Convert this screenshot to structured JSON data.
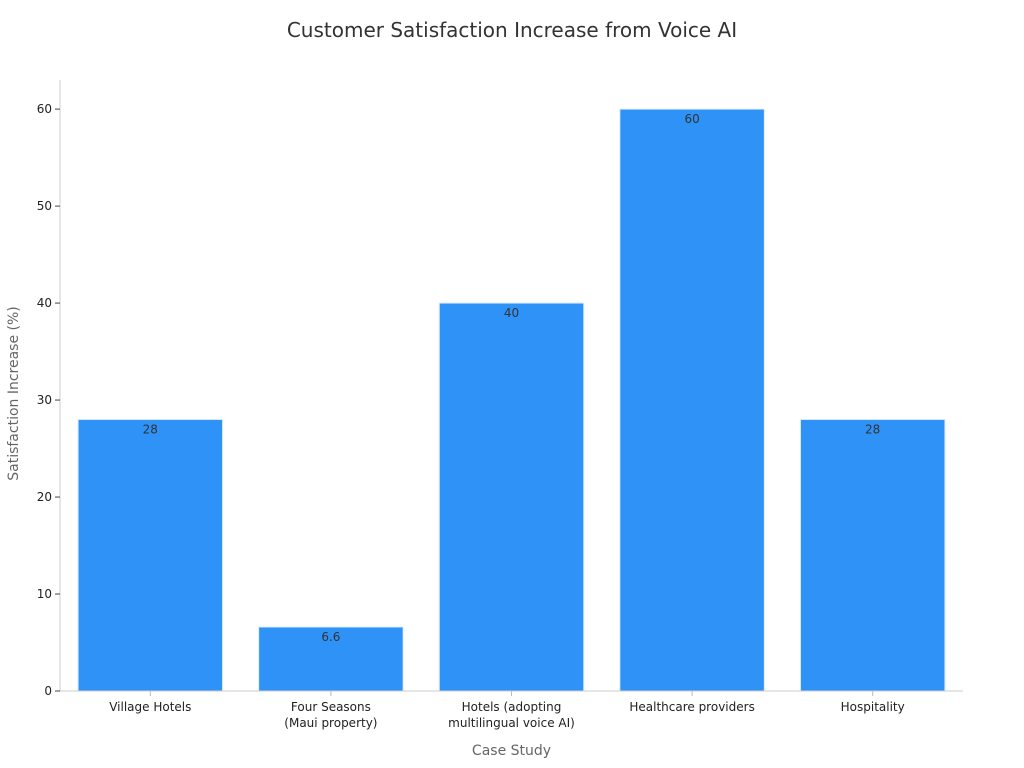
{
  "chart_data": {
    "type": "bar",
    "title": "Customer Satisfaction Increase from Voice AI",
    "xlabel": "Case Study",
    "ylabel": "Satisfaction Increase (%)",
    "categories": [
      [
        "Village Hotels"
      ],
      [
        "Four Seasons",
        "(Maui property)"
      ],
      [
        "Hotels (adopting",
        "multilingual voice AI)"
      ],
      [
        "Healthcare providers"
      ],
      [
        "Hospitality"
      ]
    ],
    "values": [
      28,
      6.6,
      40,
      60,
      28
    ],
    "data_labels": [
      "28",
      "6.6",
      "40",
      "60",
      "28"
    ],
    "ylim": [
      0,
      63
    ],
    "yticks": [
      0,
      10,
      20,
      30,
      40,
      50,
      60
    ],
    "grid": false,
    "bar_color": "#2f92f7"
  }
}
